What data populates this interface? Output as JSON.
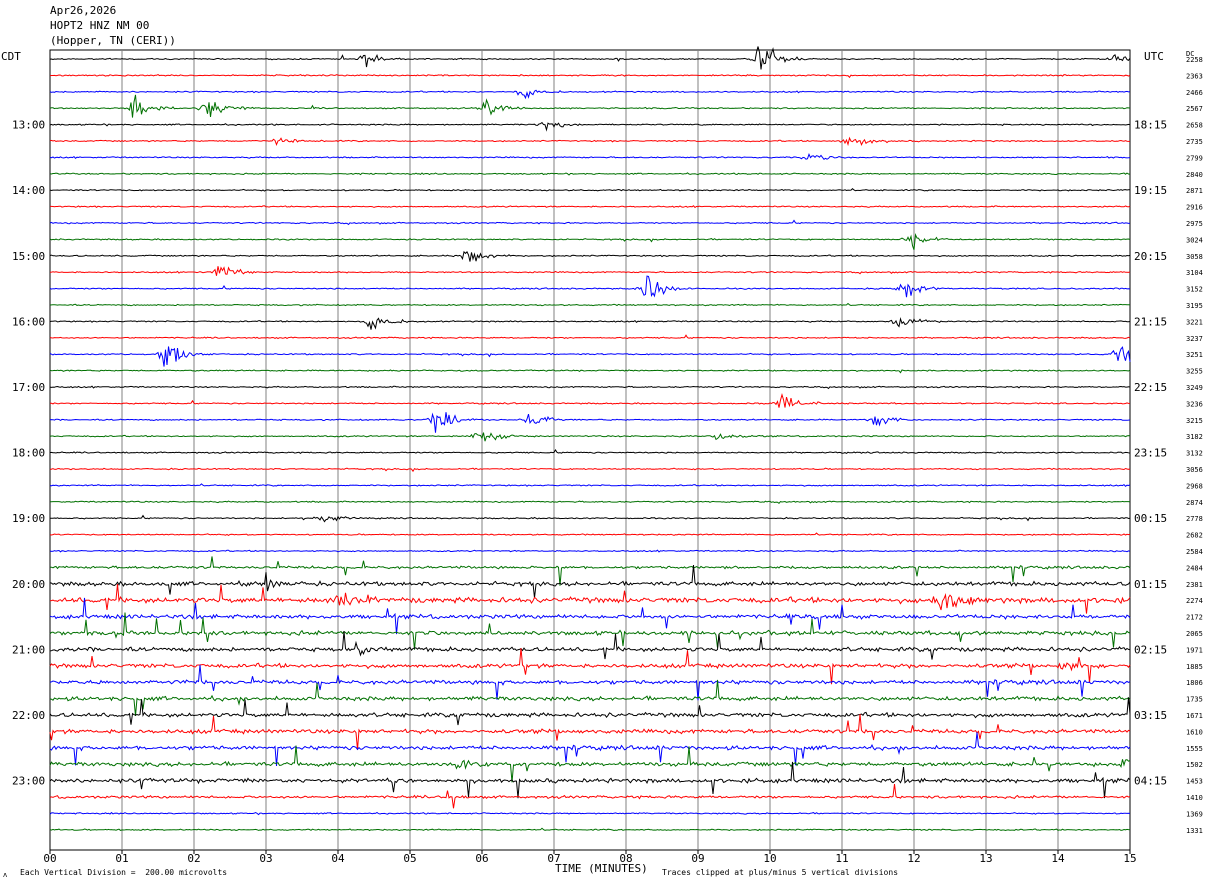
{
  "header": {
    "line1": "Apr26,2026",
    "line2": "HOPT2 HNZ NM 00",
    "line3": "(Hopper, TN (CERI))"
  },
  "left_zone": "CDT",
  "right_zone": "UTC",
  "dc_label": "DC",
  "footer": {
    "xlabel": "TIME (MINUTES)",
    "scale_note": "Each Vertical Division =  200.00 microvolts",
    "clip_note": "Traces clipped at plus/minus 5 vertical divisions",
    "corner_mark": "ʌ"
  },
  "colors": {
    "trace_cycle": [
      "#000000",
      "#ff0000",
      "#0000ff",
      "#007000"
    ],
    "grid": "#808080"
  },
  "chart_data": {
    "type": "line",
    "title": "HOPT2 HNZ NM 00",
    "xlabel": "TIME (MINUTES)",
    "xlim": [
      0,
      15
    ],
    "x_ticks": [
      "00",
      "01",
      "02",
      "03",
      "04",
      "05",
      "06",
      "07",
      "08",
      "09",
      "10",
      "11",
      "12",
      "13",
      "14",
      "15"
    ],
    "left_time_labels": [
      "13:00",
      "14:00",
      "15:00",
      "16:00",
      "17:00",
      "18:00",
      "19:00",
      "20:00",
      "21:00",
      "22:00",
      "23:00"
    ],
    "right_time_labels": [
      "18:15",
      "19:15",
      "20:15",
      "21:15",
      "22:15",
      "23:15",
      "00:15",
      "01:15",
      "02:15",
      "03:15",
      "04:15"
    ],
    "dc_offsets": [
      "2258",
      "2363",
      "2466",
      "2567",
      "2658",
      "2735",
      "2799",
      "2840",
      "2871",
      "2916",
      "2975",
      "3024",
      "3058",
      "3104",
      "3152",
      "3195",
      "3221",
      "3237",
      "3251",
      "3255",
      "3249",
      "3236",
      "3215",
      "3182",
      "3132",
      "3056",
      "2968",
      "2874",
      "2778",
      "2682",
      "2584",
      "2484",
      "2381",
      "2274",
      "2172",
      "2065",
      "1971",
      "1885",
      "1806",
      "1735",
      "1671",
      "1610",
      "1555",
      "1502",
      "1453",
      "1410",
      "1369",
      "1331"
    ],
    "trace_activity": [
      1,
      1,
      1,
      1,
      1,
      1,
      1,
      1,
      1,
      1,
      1,
      1,
      1,
      1,
      1,
      1,
      1,
      1,
      1,
      1,
      1,
      1,
      1,
      1,
      1,
      1,
      1,
      1,
      1,
      1,
      1,
      2,
      3,
      4,
      3,
      3,
      3,
      3,
      3,
      3,
      3,
      3,
      3,
      3,
      3,
      2,
      1,
      1
    ],
    "events": [
      {
        "trace": 0,
        "minute": 4.4,
        "amp": 10
      },
      {
        "trace": 0,
        "minute": 9.9,
        "amp": 26
      },
      {
        "trace": 0,
        "minute": 14.8,
        "amp": 8
      },
      {
        "trace": 2,
        "minute": 6.6,
        "amp": 10
      },
      {
        "trace": 3,
        "minute": 1.2,
        "amp": 20
      },
      {
        "trace": 3,
        "minute": 2.2,
        "amp": 20
      },
      {
        "trace": 3,
        "minute": 6.1,
        "amp": 16
      },
      {
        "trace": 4,
        "minute": 6.9,
        "amp": 8
      },
      {
        "trace": 5,
        "minute": 3.2,
        "amp": 9
      },
      {
        "trace": 5,
        "minute": 11.1,
        "amp": 9
      },
      {
        "trace": 6,
        "minute": 10.6,
        "amp": 7
      },
      {
        "trace": 11,
        "minute": 12.0,
        "amp": 12
      },
      {
        "trace": 12,
        "minute": 5.8,
        "amp": 14
      },
      {
        "trace": 13,
        "minute": 2.4,
        "amp": 14
      },
      {
        "trace": 14,
        "minute": 8.3,
        "amp": 24
      },
      {
        "trace": 14,
        "minute": 11.9,
        "amp": 16
      },
      {
        "trace": 16,
        "minute": 4.5,
        "amp": 14
      },
      {
        "trace": 16,
        "minute": 11.8,
        "amp": 12
      },
      {
        "trace": 18,
        "minute": 1.65,
        "amp": 22
      },
      {
        "trace": 18,
        "minute": 14.9,
        "amp": 18
      },
      {
        "trace": 21,
        "minute": 10.2,
        "amp": 14
      },
      {
        "trace": 22,
        "minute": 5.4,
        "amp": 16
      },
      {
        "trace": 22,
        "minute": 6.7,
        "amp": 10
      },
      {
        "trace": 22,
        "minute": 11.5,
        "amp": 12
      },
      {
        "trace": 23,
        "minute": 6.0,
        "amp": 14
      },
      {
        "trace": 23,
        "minute": 9.3,
        "amp": 10
      },
      {
        "trace": 28,
        "minute": 3.8,
        "amp": 8
      },
      {
        "trace": 32,
        "minute": 3.0,
        "amp": 14
      },
      {
        "trace": 33,
        "minute": 4.1,
        "amp": 20
      },
      {
        "trace": 33,
        "minute": 12.4,
        "amp": 24
      },
      {
        "trace": 36,
        "minute": 4.3,
        "amp": 14
      },
      {
        "trace": 37,
        "minute": 14.1,
        "amp": 8
      },
      {
        "trace": 43,
        "minute": 5.7,
        "amp": 10
      },
      {
        "trace": 43,
        "minute": 14.9,
        "amp": 12
      }
    ]
  }
}
